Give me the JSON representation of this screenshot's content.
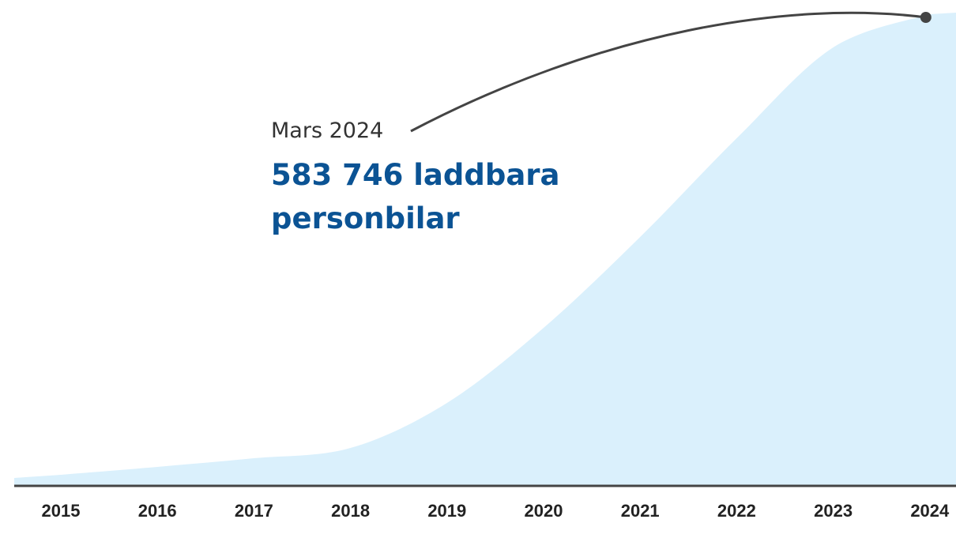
{
  "chart_data": {
    "type": "area",
    "categories": [
      "2015",
      "2016",
      "2017",
      "2018",
      "2019",
      "2020",
      "2021",
      "2022",
      "2023",
      "2024"
    ],
    "values": [
      13700,
      23500,
      34200,
      46900,
      102700,
      195600,
      308000,
      430200,
      542700,
      583746
    ],
    "color": "#daf0fc",
    "annotation": {
      "date": "Mars 2024",
      "text": "583 746 laddbara personbilar"
    }
  }
}
